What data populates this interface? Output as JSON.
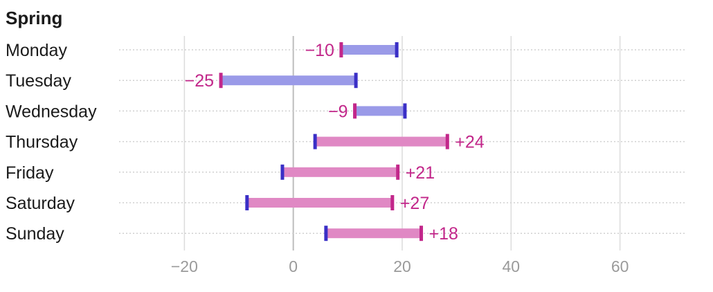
{
  "chart_data": {
    "type": "dumbbell",
    "title": "Spring",
    "categories": [
      "Monday",
      "Tuesday",
      "Wednesday",
      "Thursday",
      "Friday",
      "Saturday",
      "Sunday"
    ],
    "series": [
      {
        "values": [
          19,
          11.5,
          20.5,
          4,
          -2,
          -8.5,
          6
        ]
      },
      {
        "values": [
          8.8,
          -13.3,
          11.3,
          28.3,
          19.2,
          18.2,
          23.5
        ]
      }
    ],
    "labels": [
      "−10",
      "−25",
      "−9",
      "+24",
      "+21",
      "+27",
      "+18"
    ],
    "xticks": [
      -20,
      0,
      20,
      40,
      60
    ],
    "xtick_labels": [
      "−20",
      "0",
      "20",
      "40",
      "60"
    ],
    "xlim": [
      -32,
      72
    ],
    "grid": true,
    "colors": {
      "start_marker": "#3a2fc6",
      "end_marker": "#c2278a",
      "bar_decrease": "#9a9ae8",
      "bar_increase": "#e088c4",
      "label": "#c2278a",
      "gridline": "#dcdcdc",
      "zero_line": "#bdbdbd",
      "row_dots": "#d0d0d0",
      "tick_label": "#9a9a9a"
    }
  }
}
